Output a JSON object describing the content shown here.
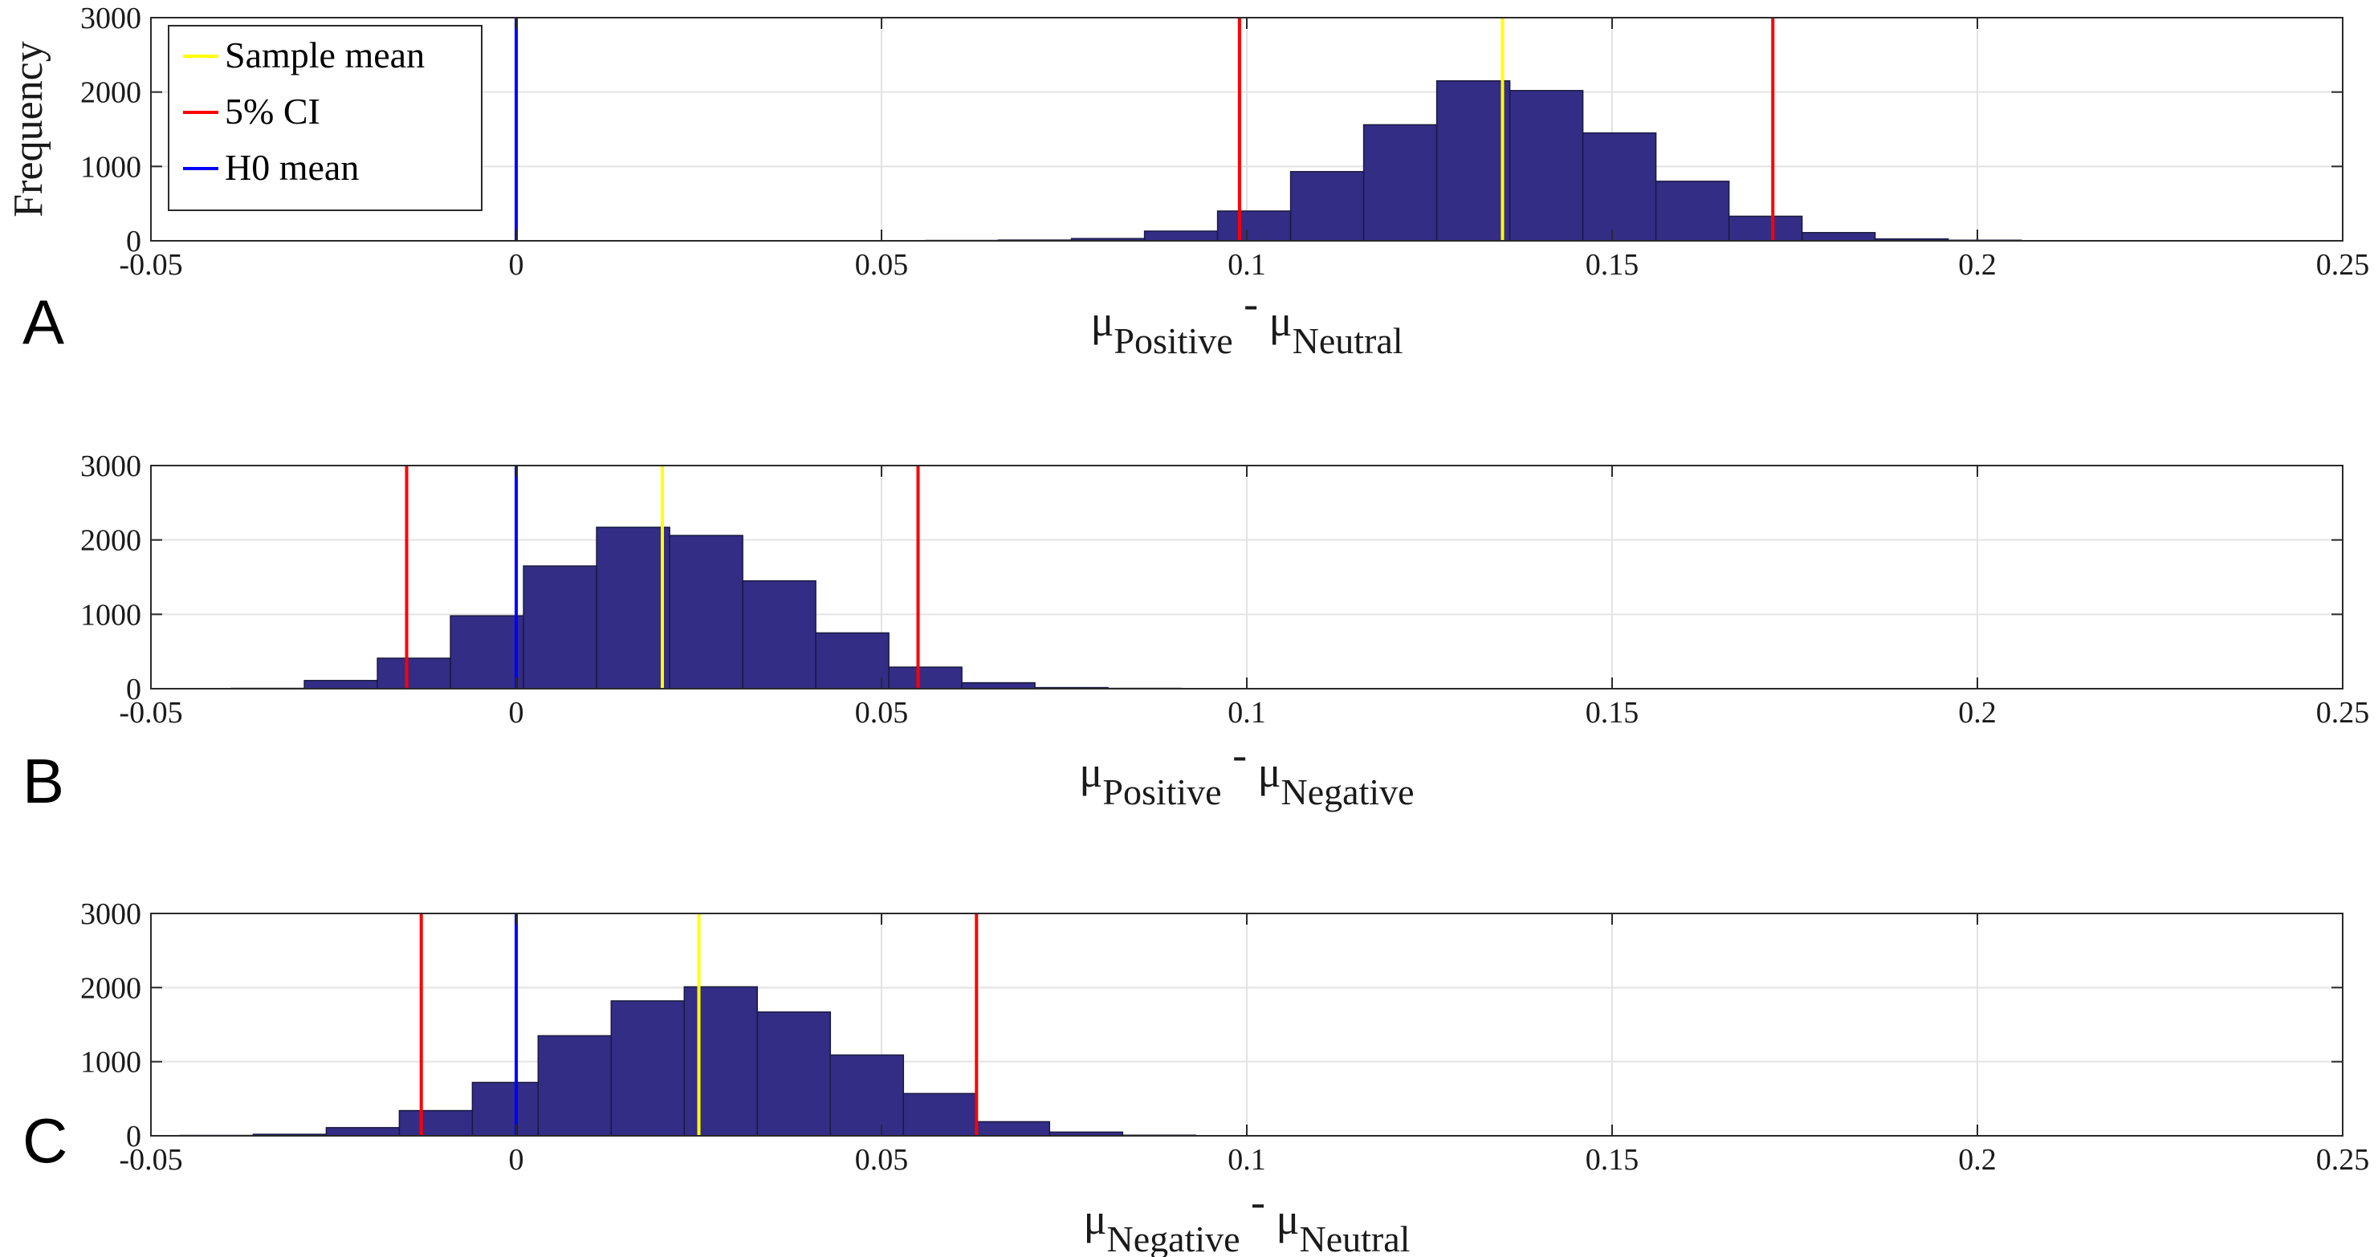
{
  "figure": {
    "colors": {
      "bar_fill": "#332d86",
      "bar_edge": "#1a1a40",
      "sample_mean": "#ffff00",
      "ci": "#ff0000",
      "h0": "#0000ff",
      "grid": "#e3e3e3",
      "axis": "#2a2a2a"
    }
  },
  "chart_data": [
    {
      "type": "bar",
      "panel_label": "A",
      "xlabel": {
        "mu1": "μ",
        "sub1": "Positive",
        "op": " - ",
        "mu2": "μ",
        "sub2": "Neutral"
      },
      "ylabel": "Frequency",
      "xlim": [
        -0.05,
        0.25
      ],
      "ylim": [
        0,
        3000
      ],
      "xticks": [
        -0.05,
        0,
        0.05,
        0.1,
        0.15,
        0.2,
        0.25
      ],
      "xtick_labels": [
        "-0.05",
        "0",
        "0.05",
        "0.1",
        "0.15",
        "0.2",
        "0.25"
      ],
      "yticks": [
        0,
        1000,
        2000,
        3000
      ],
      "ytick_labels": [
        "0",
        "1000",
        "2000",
        "3000"
      ],
      "grid": true,
      "bin_width": 0.01,
      "bins": [
        {
          "start": 0.056,
          "value": 5
        },
        {
          "start": 0.066,
          "value": 10
        },
        {
          "start": 0.076,
          "value": 30
        },
        {
          "start": 0.086,
          "value": 130
        },
        {
          "start": 0.096,
          "value": 400
        },
        {
          "start": 0.106,
          "value": 930
        },
        {
          "start": 0.116,
          "value": 1560
        },
        {
          "start": 0.126,
          "value": 2150
        },
        {
          "start": 0.136,
          "value": 2020
        },
        {
          "start": 0.146,
          "value": 1450
        },
        {
          "start": 0.156,
          "value": 800
        },
        {
          "start": 0.166,
          "value": 330
        },
        {
          "start": 0.176,
          "value": 110
        },
        {
          "start": 0.186,
          "value": 25
        },
        {
          "start": 0.196,
          "value": 8
        }
      ],
      "vlines": [
        {
          "name": "Sample mean",
          "x": 0.135,
          "color": "#ffff00"
        },
        {
          "name": "5% CI",
          "x": 0.099,
          "color": "#ff0000"
        },
        {
          "name": "5% CI",
          "x": 0.172,
          "color": "#ff0000"
        },
        {
          "name": "H0 mean",
          "x": 0.0,
          "color": "#0000ff"
        }
      ],
      "legend": {
        "position": "top-left",
        "entries": [
          {
            "label": "Sample mean",
            "color": "#ffff00"
          },
          {
            "label": " 5% CI",
            "color": "#ff0000"
          },
          {
            "label": "H0 mean",
            "color": "#0000ff"
          }
        ]
      }
    },
    {
      "type": "bar",
      "panel_label": "B",
      "xlabel": {
        "mu1": "μ",
        "sub1": "Positive",
        "op": " - ",
        "mu2": "μ",
        "sub2": "Negative"
      },
      "ylabel": "",
      "xlim": [
        -0.05,
        0.25
      ],
      "ylim": [
        0,
        3000
      ],
      "xticks": [
        -0.05,
        0,
        0.05,
        0.1,
        0.15,
        0.2,
        0.25
      ],
      "xtick_labels": [
        "-0.05",
        "0",
        "0.05",
        "0.1",
        "0.15",
        "0.2",
        "0.25"
      ],
      "yticks": [
        0,
        1000,
        2000,
        3000
      ],
      "ytick_labels": [
        "0",
        "1000",
        "2000",
        "3000"
      ],
      "grid": true,
      "bin_width": 0.01,
      "bins": [
        {
          "start": -0.039,
          "value": 5
        },
        {
          "start": -0.029,
          "value": 110
        },
        {
          "start": -0.019,
          "value": 410
        },
        {
          "start": -0.009,
          "value": 980
        },
        {
          "start": 0.001,
          "value": 1650
        },
        {
          "start": 0.011,
          "value": 2170
        },
        {
          "start": 0.021,
          "value": 2060
        },
        {
          "start": 0.031,
          "value": 1450
        },
        {
          "start": 0.041,
          "value": 750
        },
        {
          "start": 0.051,
          "value": 290
        },
        {
          "start": 0.061,
          "value": 80
        },
        {
          "start": 0.071,
          "value": 15
        },
        {
          "start": 0.081,
          "value": 5
        }
      ],
      "vlines": [
        {
          "name": "Sample mean",
          "x": 0.02,
          "color": "#ffff00"
        },
        {
          "name": "5% CI",
          "x": -0.015,
          "color": "#ff0000"
        },
        {
          "name": "5% CI",
          "x": 0.055,
          "color": "#ff0000"
        },
        {
          "name": "H0 mean",
          "x": 0.0,
          "color": "#0000ff"
        }
      ]
    },
    {
      "type": "bar",
      "panel_label": "C",
      "xlabel": {
        "mu1": "μ",
        "sub1": "Negative",
        "op": " - ",
        "mu2": "μ",
        "sub2": "Neutral"
      },
      "ylabel": "",
      "xlim": [
        -0.05,
        0.25
      ],
      "ylim": [
        0,
        3000
      ],
      "xticks": [
        -0.05,
        0,
        0.05,
        0.1,
        0.15,
        0.2,
        0.25
      ],
      "xtick_labels": [
        "-0.05",
        "0",
        "0.05",
        "0.1",
        "0.15",
        "0.2",
        "0.25"
      ],
      "yticks": [
        0,
        1000,
        2000,
        3000
      ],
      "ytick_labels": [
        "0",
        "1000",
        "2000",
        "3000"
      ],
      "grid": true,
      "bin_width": 0.01,
      "bins": [
        {
          "start": -0.046,
          "value": 5
        },
        {
          "start": -0.036,
          "value": 20
        },
        {
          "start": -0.026,
          "value": 110
        },
        {
          "start": -0.016,
          "value": 340
        },
        {
          "start": -0.006,
          "value": 720
        },
        {
          "start": 0.003,
          "value": 1350
        },
        {
          "start": 0.013,
          "value": 1820
        },
        {
          "start": 0.023,
          "value": 2010
        },
        {
          "start": 0.033,
          "value": 1670
        },
        {
          "start": 0.043,
          "value": 1090
        },
        {
          "start": 0.053,
          "value": 570
        },
        {
          "start": 0.063,
          "value": 190
        },
        {
          "start": 0.073,
          "value": 50
        },
        {
          "start": 0.083,
          "value": 8
        }
      ],
      "vlines": [
        {
          "name": "Sample mean",
          "x": 0.025,
          "color": "#ffff00"
        },
        {
          "name": "5% CI",
          "x": -0.013,
          "color": "#ff0000"
        },
        {
          "name": "5% CI",
          "x": 0.063,
          "color": "#ff0000"
        },
        {
          "name": "H0 mean",
          "x": 0.0,
          "color": "#0000ff"
        }
      ]
    }
  ]
}
